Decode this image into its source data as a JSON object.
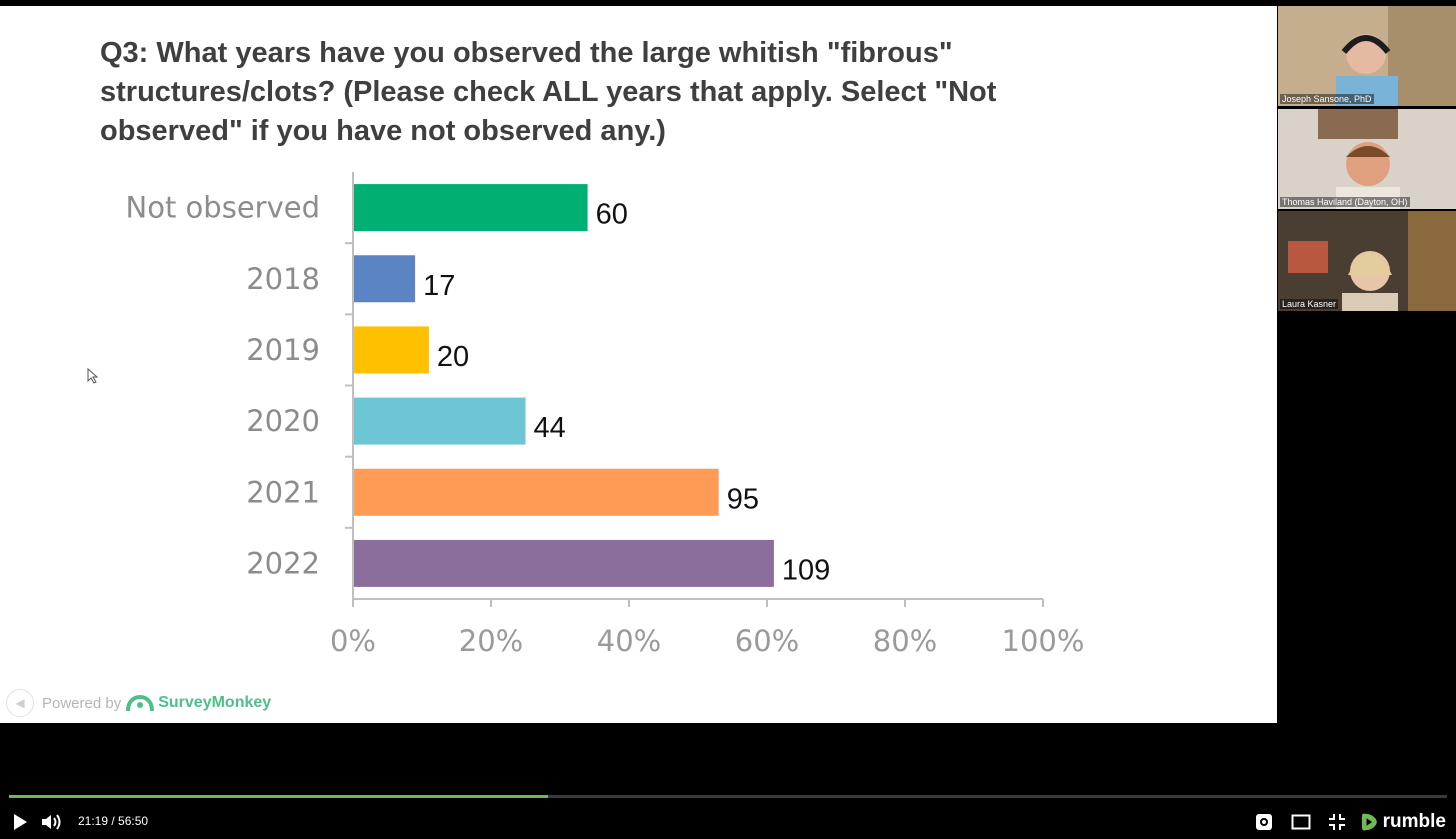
{
  "slide": {
    "question_lines": [
      "Q3: What years have you observed the large whitish \"fibrous\"",
      "structures/clots? (Please check ALL years that apply.  Select \"Not",
      "observed\" if you have not observed any.)"
    ],
    "powered_by": "Powered by",
    "brand": "SurveyMonkey",
    "brand_color": "#4fbf8a"
  },
  "chart_data": {
    "type": "bar",
    "orientation": "horizontal",
    "categories": [
      "Not observed",
      "2018",
      "2019",
      "2020",
      "2021",
      "2022"
    ],
    "values": [
      34,
      9,
      11,
      25,
      53,
      61
    ],
    "data_labels": [
      "60",
      "17",
      "20",
      "44",
      "95",
      "109"
    ],
    "colors": [
      "#00b073",
      "#5b84c4",
      "#ffc000",
      "#6ec5d4",
      "#ff9b54",
      "#8b6e9c"
    ],
    "xlim": [
      0,
      100
    ],
    "x_ticks": [
      "0%",
      "20%",
      "40%",
      "60%",
      "80%",
      "100%"
    ],
    "grid": false,
    "legend": "none"
  },
  "participants": [
    {
      "name": "Joseph Sansone, PhD"
    },
    {
      "name": "Thomas Haviland (Dayton, OH)"
    },
    {
      "name": "Laura Kasner"
    }
  ],
  "player": {
    "time_display": "21:19 / 56:50",
    "current_time": "21:19",
    "duration": "56:50",
    "progress_fraction": 0.375,
    "accent_color": "#74b856",
    "logo_text": "rumble",
    "icons": [
      "play-icon",
      "volume-icon",
      "settings-icon",
      "theater-mode-icon",
      "exit-fullscreen-icon",
      "rumble-logo-icon"
    ]
  }
}
